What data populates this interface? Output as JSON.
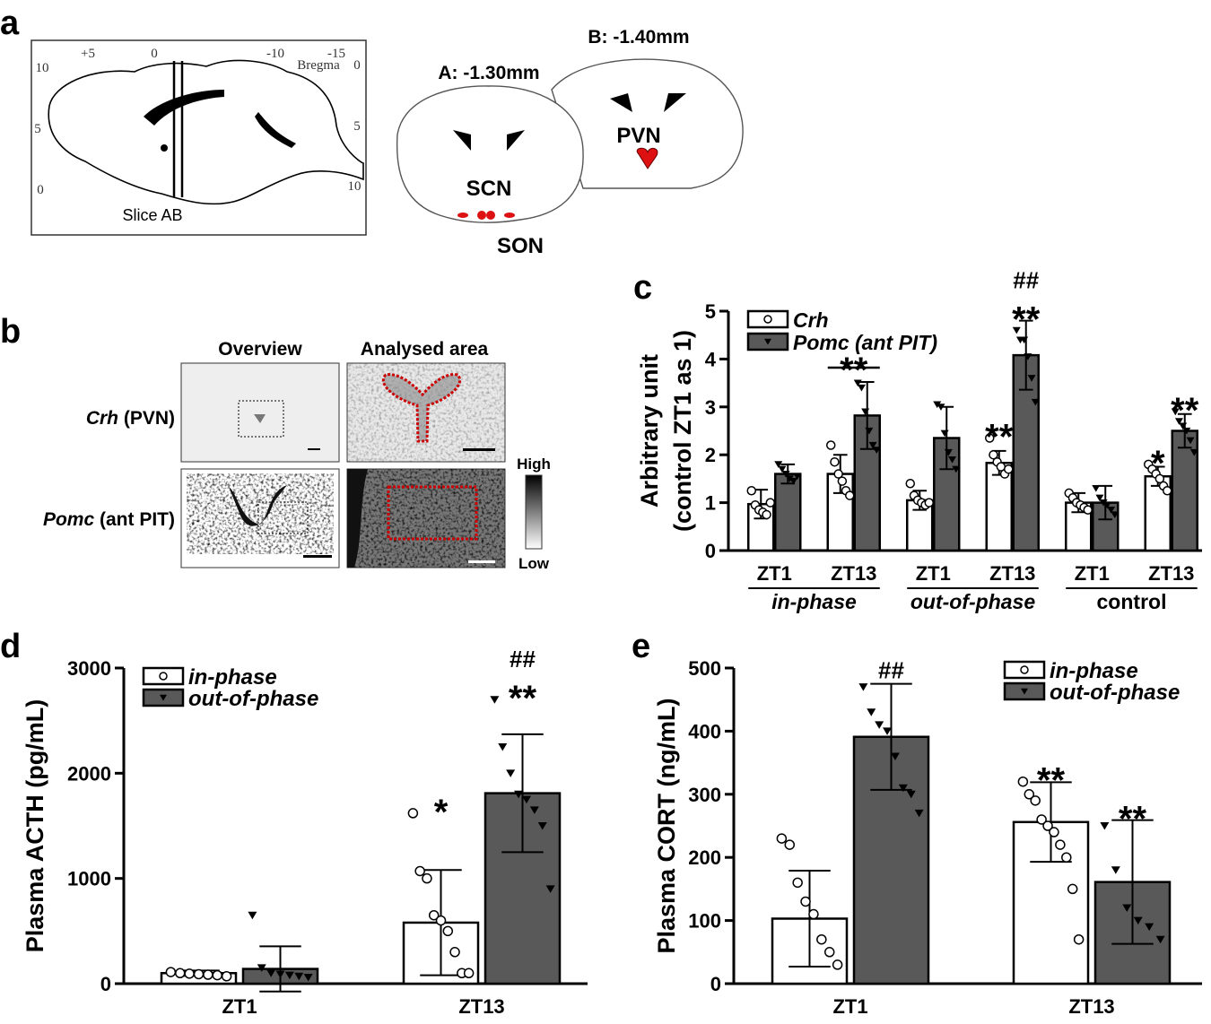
{
  "panel_a": {
    "label": "a",
    "top_ticks": [
      "+5",
      "0",
      "-10",
      "-15"
    ],
    "bregma": "Bregma",
    "left_ticks": [
      "10",
      "5",
      "0"
    ],
    "right_ticks": [
      "0",
      "5",
      "10"
    ],
    "slice": "Slice AB",
    "section_a": "A: -1.30mm",
    "section_b": "B: -1.40mm",
    "regions": [
      "SCN",
      "PVN",
      "SON"
    ]
  },
  "panel_b": {
    "label": "b",
    "columns": [
      "Overview",
      "Analysed area"
    ],
    "rows": [
      {
        "gene": "Crh",
        "region": "(PVN)"
      },
      {
        "gene": "Pomc",
        "region": "(ant PIT)"
      }
    ],
    "scale_high": "High",
    "scale_low": "Low"
  },
  "chart_data": [
    {
      "type": "bar",
      "label": "c",
      "ylabel": [
        "Arbitrary unit",
        "(control ZT1 as 1)"
      ],
      "categories": [
        "ZT1",
        "ZT13",
        "ZT1",
        "ZT13",
        "ZT1",
        "ZT13"
      ],
      "groups": [
        {
          "name": "in-phase",
          "italic": true
        },
        {
          "name": "out-of-phase",
          "italic": true
        },
        {
          "name": "control",
          "italic": false
        }
      ],
      "bracket_labels": [
        null,
        "**",
        null,
        null,
        null,
        null
      ],
      "ylim": [
        0,
        5
      ],
      "yticks": [
        0,
        1,
        2,
        3,
        4,
        5
      ],
      "legend": "upper left",
      "series": [
        {
          "name": "Crh",
          "color": "#ffffff",
          "marker": "circle",
          "values": [
            0.97,
            1.6,
            1.05,
            1.83,
            1.0,
            1.55
          ],
          "errors": [
            0.3,
            0.4,
            0.2,
            0.25,
            0.2,
            0.2
          ],
          "stars": [
            null,
            null,
            null,
            "**",
            null,
            "*"
          ],
          "hashes": [
            null,
            null,
            null,
            null,
            null,
            null
          ],
          "points": [
            [
              1.25,
              0.95,
              0.85,
              0.8,
              0.75,
              1.0
            ],
            [
              2.2,
              1.85,
              1.6,
              1.45,
              1.25,
              1.15
            ],
            [
              1.4,
              1.15,
              1.05,
              1.0,
              0.95,
              1.0
            ],
            [
              2.35,
              2.0,
              1.85,
              1.75,
              1.6,
              1.7
            ],
            [
              1.2,
              1.1,
              1.0,
              0.95,
              0.9,
              0.85
            ],
            [
              1.8,
              1.7,
              1.6,
              1.5,
              1.35,
              1.25
            ]
          ]
        },
        {
          "name": "Pomc (ant PIT)",
          "color": "#595959",
          "marker": "triangle",
          "values": [
            1.6,
            2.82,
            2.35,
            4.08,
            1.0,
            2.5
          ],
          "errors": [
            0.2,
            0.7,
            0.65,
            0.72,
            0.35,
            0.35
          ],
          "stars": [
            null,
            null,
            null,
            "**",
            null,
            "**"
          ],
          "hashes": [
            null,
            null,
            null,
            "##",
            null,
            null
          ],
          "points": [
            [
              1.8,
              1.7,
              1.6,
              1.5,
              1.45,
              1.55
            ],
            [
              3.5,
              3.4,
              2.9,
              2.5,
              2.2,
              2.1
            ],
            [
              3.05,
              3.0,
              2.45,
              2.05,
              1.9,
              1.7
            ],
            [
              4.6,
              4.4,
              4.4,
              4.05,
              3.6,
              3.1
            ],
            [
              1.3,
              1.1,
              1.0,
              0.95,
              0.85,
              0.75
            ],
            [
              2.9,
              2.7,
              2.6,
              2.5,
              2.3,
              2.05
            ]
          ]
        }
      ]
    },
    {
      "type": "bar",
      "label": "d",
      "ylabel": "Plasma ACTH (pg/mL)",
      "categories": [
        "ZT1",
        "ZT13"
      ],
      "ylim": [
        0,
        3000
      ],
      "yticks": [
        0,
        1000,
        2000,
        3000
      ],
      "legend": "upper left",
      "series": [
        {
          "name": "in-phase",
          "color": "#ffffff",
          "marker": "circle",
          "values": [
            100,
            580
          ],
          "errors": [
            25,
            500
          ],
          "stars": [
            null,
            "*"
          ],
          "hashes": [
            null,
            null
          ],
          "points": [
            [
              110,
              100,
              95,
              90,
              85,
              80,
              70
            ],
            [
              1620,
              1070,
              1000,
              650,
              600,
              500,
              300,
              100,
              100
            ]
          ]
        },
        {
          "name": "out-of-phase",
          "color": "#595959",
          "marker": "triangle",
          "values": [
            140,
            1810
          ],
          "errors": [
            215,
            560
          ],
          "stars": [
            null,
            "**"
          ],
          "hashes": [
            null,
            "##"
          ],
          "points": [
            [
              650,
              150,
              100,
              90,
              80,
              70,
              60
            ],
            [
              2700,
              2250,
              2000,
              1800,
              1750,
              1650,
              1500,
              900
            ]
          ]
        }
      ]
    },
    {
      "type": "bar",
      "label": "e",
      "ylabel": "Plasma CORT (ng/mL)",
      "categories": [
        "ZT1",
        "ZT13"
      ],
      "ylim": [
        0,
        500
      ],
      "yticks": [
        0,
        100,
        200,
        300,
        400,
        500
      ],
      "legend": "upper right",
      "series": [
        {
          "name": "in-phase",
          "color": "#ffffff",
          "marker": "circle",
          "values": [
            103,
            256
          ],
          "errors": [
            76,
            63
          ],
          "stars": [
            null,
            "**"
          ],
          "hashes": [
            null,
            null
          ],
          "points": [
            [
              230,
              220,
              160,
              130,
              110,
              70,
              50,
              30
            ],
            [
              320,
              300,
              290,
              260,
              250,
              240,
              220,
              200,
              150,
              70
            ]
          ]
        },
        {
          "name": "out-of-phase",
          "color": "#595959",
          "marker": "triangle",
          "values": [
            391,
            161
          ],
          "errors": [
            84,
            98
          ],
          "stars": [
            null,
            "**"
          ],
          "hashes": [
            "##",
            null
          ],
          "points": [
            [
              470,
              430,
              410,
              400,
              360,
              310,
              300,
              270
            ],
            [
              250,
              180,
              120,
              100,
              90,
              70
            ]
          ]
        }
      ]
    }
  ]
}
